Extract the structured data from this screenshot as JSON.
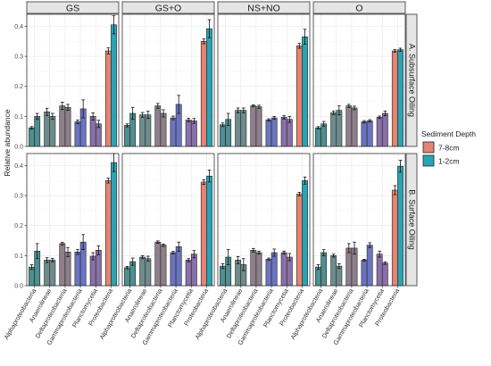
{
  "chart_data": {
    "type": "bar",
    "ylabel": "Relative abundance",
    "ylim": [
      0,
      0.44
    ],
    "yticks": [
      0.0,
      0.1,
      0.2,
      0.3,
      0.4
    ],
    "ytick_labels": [
      "0.0",
      "0.1",
      "0.2",
      "0.3",
      "0.4"
    ],
    "categories": [
      "Alphaproteobacteria",
      "Anaerolineae",
      "Deltaproteobacteria",
      "Gammaproteobacteria",
      "Planctomycetia",
      "Proteobacteria"
    ],
    "facet_columns": [
      "GS",
      "GS+O",
      "NS+NO",
      "O"
    ],
    "facet_rows": [
      "A. Subsurface Oiling",
      "B. Surface Oiling"
    ],
    "legend": {
      "title": "Sediment Depth",
      "position": "right",
      "entries": [
        {
          "label": "7-8cm",
          "color": "#E58472"
        },
        {
          "label": "1-2cm",
          "color": "#2AA4B4"
        }
      ]
    },
    "category_colors": [
      "#4F8F91",
      "#6F8C8C",
      "#8E7F8A",
      "#6A74C0",
      "#8A70A8",
      "#E58472"
    ],
    "panel_background": "#ffffff",
    "grid": true,
    "panels": [
      {
        "row": 0,
        "col": 0,
        "series": [
          {
            "name": "7-8cm",
            "values": [
              0.062,
              0.115,
              0.135,
              0.082,
              0.1,
              0.318
            ],
            "errors": [
              0.004,
              0.012,
              0.012,
              0.006,
              0.012,
              0.01
            ]
          },
          {
            "name": "1-2cm",
            "values": [
              0.1,
              0.1,
              0.13,
              0.125,
              0.075,
              0.405
            ],
            "errors": [
              0.01,
              0.01,
              0.01,
              0.03,
              0.012,
              0.03
            ]
          }
        ]
      },
      {
        "row": 0,
        "col": 1,
        "series": [
          {
            "name": "7-8cm",
            "values": [
              0.07,
              0.105,
              0.135,
              0.095,
              0.088,
              0.35
            ],
            "errors": [
              0.005,
              0.008,
              0.008,
              0.006,
              0.006,
              0.008
            ]
          },
          {
            "name": "1-2cm",
            "values": [
              0.11,
              0.105,
              0.11,
              0.14,
              0.085,
              0.392
            ],
            "errors": [
              0.02,
              0.012,
              0.012,
              0.03,
              0.008,
              0.03
            ]
          }
        ]
      },
      {
        "row": 0,
        "col": 2,
        "series": [
          {
            "name": "7-8cm",
            "values": [
              0.072,
              0.12,
              0.135,
              0.088,
              0.097,
              0.335
            ],
            "errors": [
              0.006,
              0.008,
              0.003,
              0.004,
              0.006,
              0.008
            ]
          },
          {
            "name": "1-2cm",
            "values": [
              0.09,
              0.12,
              0.132,
              0.095,
              0.09,
              0.365
            ],
            "errors": [
              0.02,
              0.008,
              0.005,
              0.005,
              0.01,
              0.025
            ]
          }
        ]
      },
      {
        "row": 0,
        "col": 3,
        "series": [
          {
            "name": "7-8cm",
            "values": [
              0.062,
              0.112,
              0.135,
              0.082,
              0.097,
              0.318
            ],
            "errors": [
              0.004,
              0.006,
              0.005,
              0.004,
              0.004,
              0.004
            ]
          },
          {
            "name": "1-2cm",
            "values": [
              0.075,
              0.12,
              0.128,
              0.085,
              0.11,
              0.322
            ],
            "errors": [
              0.008,
              0.015,
              0.006,
              0.004,
              0.008,
              0.005
            ]
          }
        ]
      },
      {
        "row": 1,
        "col": 0,
        "series": [
          {
            "name": "7-8cm",
            "values": [
              0.062,
              0.085,
              0.14,
              0.112,
              0.098,
              0.35
            ],
            "errors": [
              0.008,
              0.008,
              0.004,
              0.008,
              0.012,
              0.008
            ]
          },
          {
            "name": "1-2cm",
            "values": [
              0.115,
              0.085,
              0.112,
              0.145,
              0.118,
              0.41
            ],
            "errors": [
              0.025,
              0.006,
              0.015,
              0.025,
              0.015,
              0.03
            ]
          }
        ]
      },
      {
        "row": 1,
        "col": 1,
        "series": [
          {
            "name": "7-8cm",
            "values": [
              0.06,
              0.095,
              0.145,
              0.11,
              0.085,
              0.345
            ],
            "errors": [
              0.004,
              0.005,
              0.004,
              0.004,
              0.005,
              0.008
            ]
          },
          {
            "name": "1-2cm",
            "values": [
              0.08,
              0.09,
              0.135,
              0.13,
              0.105,
              0.365
            ],
            "errors": [
              0.012,
              0.008,
              0.004,
              0.015,
              0.012,
              0.02
            ]
          }
        ]
      },
      {
        "row": 1,
        "col": 2,
        "series": [
          {
            "name": "7-8cm",
            "values": [
              0.065,
              0.085,
              0.118,
              0.088,
              0.11,
              0.305
            ],
            "errors": [
              0.008,
              0.012,
              0.006,
              0.004,
              0.005,
              0.006
            ]
          },
          {
            "name": "1-2cm",
            "values": [
              0.095,
              0.07,
              0.11,
              0.11,
              0.095,
              0.35
            ],
            "errors": [
              0.025,
              0.02,
              0.005,
              0.012,
              0.012,
              0.012
            ]
          }
        ]
      },
      {
        "row": 1,
        "col": 3,
        "series": [
          {
            "name": "7-8cm",
            "values": [
              0.062,
              0.1,
              0.125,
              0.085,
              0.105,
              0.318
            ],
            "errors": [
              0.008,
              0.005,
              0.015,
              0.003,
              0.01,
              0.015
            ]
          },
          {
            "name": "1-2cm",
            "values": [
              0.11,
              0.065,
              0.125,
              0.135,
              0.075,
              0.398
            ],
            "errors": [
              0.01,
              0.008,
              0.02,
              0.008,
              0.004,
              0.02
            ]
          }
        ]
      }
    ]
  }
}
